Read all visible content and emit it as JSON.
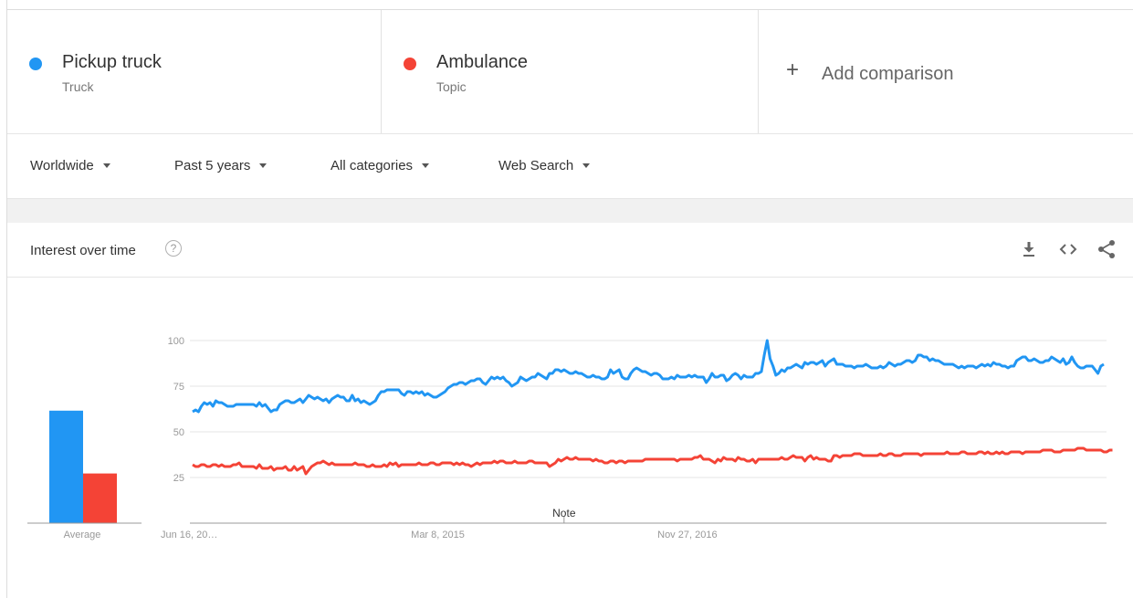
{
  "terms": [
    {
      "name": "Pickup truck",
      "type": "Truck",
      "color": "#2196f3"
    },
    {
      "name": "Ambulance",
      "type": "Topic",
      "color": "#f44336"
    }
  ],
  "add_comparison": {
    "icon": "plus-icon",
    "label": "Add comparison"
  },
  "filters": {
    "region": "Worldwide",
    "time": "Past 5 years",
    "category": "All categories",
    "search_type": "Web Search"
  },
  "card": {
    "title": "Interest over time",
    "help_icon": "help-icon",
    "help_glyph": "?",
    "actions": [
      "download-icon",
      "embed-icon",
      "share-icon"
    ]
  },
  "chart_data": [
    {
      "type": "bar",
      "categories": [
        "Average"
      ],
      "series": [
        {
          "name": "Pickup truck",
          "values": [
            77
          ]
        },
        {
          "name": "Ambulance",
          "values": [
            34
          ]
        }
      ],
      "ylim": [
        0,
        100
      ],
      "xlabel": "Average"
    },
    {
      "type": "line",
      "ylim": [
        0,
        100
      ],
      "yticks": [
        25,
        50,
        75,
        100
      ],
      "xtick_labels": [
        "Jun 16, 20…",
        "Mar 8, 2015",
        "Nov 27, 2016"
      ],
      "xtick_positions": [
        0,
        87,
        173
      ],
      "annotation": {
        "label": "Note",
        "at": 128
      },
      "grid": true,
      "series": [
        {
          "name": "Pickup truck",
          "values": [
            61,
            62,
            61,
            64,
            66,
            65,
            66,
            64,
            67,
            66,
            66,
            65,
            64,
            64,
            64,
            65,
            65,
            65,
            65,
            65,
            65,
            65,
            64,
            66,
            64,
            65,
            63,
            61,
            62,
            62,
            65,
            66,
            67,
            67,
            66,
            66,
            67,
            68,
            66,
            68,
            70,
            69,
            68,
            69,
            68,
            67,
            68,
            66,
            68,
            69,
            70,
            69,
            69,
            67,
            67,
            70,
            67,
            68,
            66,
            67,
            66,
            65,
            66,
            67,
            70,
            72,
            72,
            73,
            73,
            73,
            73,
            73,
            71,
            70,
            72,
            72,
            71,
            72,
            71,
            72,
            70,
            71,
            70,
            69,
            69,
            70,
            71,
            72,
            74,
            75,
            76,
            76,
            77,
            77,
            76,
            77,
            78,
            78,
            79,
            79,
            77,
            76,
            78,
            80,
            79,
            80,
            79,
            80,
            78,
            77,
            75,
            76,
            77,
            80,
            79,
            78,
            79,
            80,
            80,
            82,
            81,
            80,
            79,
            82,
            82,
            84,
            84,
            83,
            84,
            83,
            82,
            82,
            83,
            82,
            82,
            81,
            80,
            80,
            81,
            80,
            80,
            79,
            79,
            80,
            84,
            82,
            83,
            84,
            80,
            79,
            79,
            82,
            84,
            85,
            84,
            83,
            83,
            82,
            81,
            82,
            82,
            81,
            79,
            79,
            79,
            80,
            79,
            81,
            80,
            80,
            80,
            81,
            80,
            81,
            80,
            80,
            80,
            77,
            79,
            82,
            80,
            80,
            81,
            81,
            78,
            79,
            81,
            82,
            81,
            79,
            81,
            80,
            80,
            80,
            82,
            82,
            83,
            92,
            100,
            90,
            86,
            81,
            82,
            84,
            83,
            85,
            85,
            86,
            87,
            86,
            85,
            88,
            87,
            88,
            88,
            87,
            88,
            89,
            86,
            88,
            89,
            90,
            87,
            87,
            87,
            86,
            86,
            86,
            85,
            86,
            86,
            86,
            87,
            86,
            85,
            85,
            85,
            86,
            85,
            86,
            88,
            87,
            86,
            87,
            87,
            88,
            89,
            89,
            88,
            89,
            92,
            92,
            91,
            91,
            89,
            90,
            89,
            89,
            88,
            87,
            87,
            87,
            87,
            86,
            85,
            86,
            85,
            86,
            86,
            86,
            85,
            86,
            87,
            86,
            87,
            86,
            88,
            87,
            87,
            86,
            86,
            85,
            86,
            86,
            89,
            90,
            91,
            91,
            89,
            89,
            90,
            89,
            88,
            88,
            89,
            89,
            91,
            90,
            89,
            88,
            90,
            87,
            88,
            91,
            88,
            86,
            85,
            85,
            86,
            86,
            86,
            84,
            82,
            86,
            87
          ]
        },
        {
          "name": "Ambulance",
          "values": [
            32,
            31,
            31,
            32,
            32,
            31,
            31,
            32,
            32,
            31,
            32,
            31,
            31,
            31,
            32,
            32,
            33,
            31,
            31,
            31,
            31,
            31,
            30,
            32,
            30,
            30,
            30,
            31,
            29,
            30,
            30,
            30,
            31,
            29,
            29,
            31,
            29,
            30,
            31,
            27,
            29,
            31,
            32,
            33,
            33,
            34,
            33,
            32,
            33,
            32,
            32,
            32,
            32,
            32,
            32,
            32,
            33,
            32,
            32,
            32,
            31,
            31,
            32,
            31,
            31,
            31,
            32,
            31,
            33,
            32,
            33,
            31,
            32,
            32,
            32,
            32,
            32,
            32,
            33,
            32,
            32,
            32,
            33,
            33,
            32,
            32,
            33,
            33,
            33,
            33,
            32,
            33,
            32,
            33,
            32,
            32,
            31,
            32,
            33,
            32,
            33,
            33,
            33,
            33,
            34,
            33,
            34,
            34,
            33,
            33,
            33,
            34,
            33,
            33,
            33,
            33,
            34,
            34,
            33,
            33,
            33,
            33,
            33,
            31,
            32,
            33,
            35,
            34,
            35,
            36,
            35,
            35,
            36,
            35,
            35,
            35,
            35,
            35,
            34,
            35,
            34,
            34,
            33,
            33,
            34,
            34,
            33,
            34,
            34,
            33,
            34,
            34,
            34,
            34,
            34,
            34,
            35,
            35,
            35,
            35,
            35,
            35,
            35,
            35,
            35,
            35,
            35,
            34,
            35,
            35,
            35,
            35,
            35,
            36,
            36,
            37,
            35,
            35,
            35,
            34,
            33,
            35,
            34,
            36,
            35,
            35,
            35,
            34,
            36,
            35,
            35,
            34,
            34,
            35,
            33,
            35,
            35,
            35,
            35,
            35,
            35,
            35,
            35,
            36,
            35,
            35,
            36,
            37,
            36,
            36,
            36,
            34,
            36,
            37,
            35,
            36,
            35,
            35,
            35,
            34,
            34,
            37,
            37,
            36,
            37,
            37,
            37,
            37,
            38,
            38,
            38,
            37,
            37,
            37,
            37,
            37,
            37,
            38,
            37,
            37,
            38,
            38,
            37,
            37,
            37,
            38,
            38,
            38,
            38,
            38,
            38,
            37,
            38,
            38,
            38,
            38,
            38,
            38,
            38,
            38,
            39,
            38,
            38,
            38,
            38,
            39,
            39,
            38,
            38,
            38,
            38,
            39,
            39,
            38,
            39,
            38,
            38,
            39,
            38,
            39,
            38,
            38,
            39,
            39,
            39,
            39,
            38,
            39,
            39,
            39,
            39,
            39,
            39,
            40,
            40,
            40,
            40,
            39,
            39,
            39,
            40,
            40,
            40,
            40,
            40,
            41,
            41,
            41,
            40,
            40,
            40,
            40,
            40,
            40,
            39,
            39,
            40,
            40
          ]
        }
      ]
    }
  ]
}
